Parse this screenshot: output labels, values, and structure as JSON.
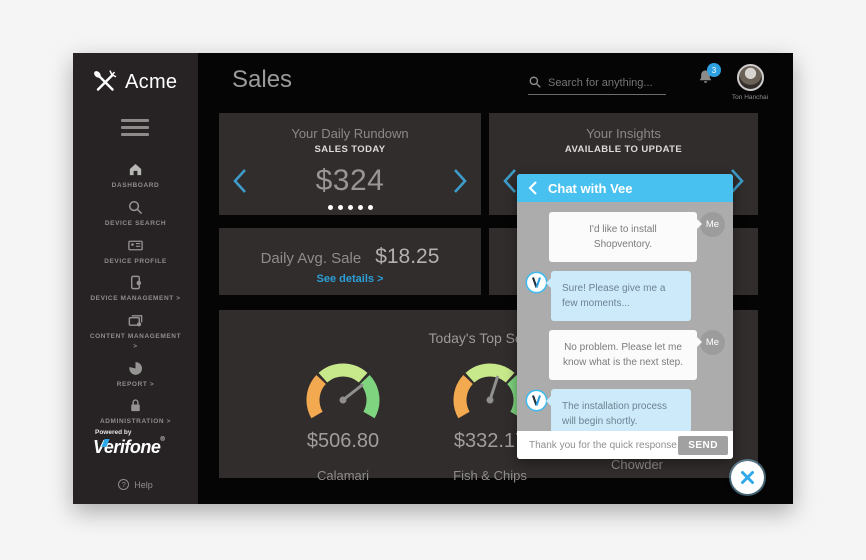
{
  "sidebar": {
    "logo": "Acme",
    "nav": [
      {
        "id": "dashboard",
        "label": "DASHBOARD"
      },
      {
        "id": "device-search",
        "label": "DEVICE SEARCH"
      },
      {
        "id": "device-profile",
        "label": "DEVICE PROFILE"
      },
      {
        "id": "device-management",
        "label": "DEVICE MANAGEMENT >"
      },
      {
        "id": "content-management",
        "label": "CONTENT MANAGEMENT >"
      },
      {
        "id": "report",
        "label": "REPORT >"
      },
      {
        "id": "administration",
        "label": "ADMINISTRATION >"
      }
    ],
    "powered_by": "Powered by",
    "brand": "Verifone",
    "brand_mark": "®",
    "help_glyph": "?",
    "help": "Help"
  },
  "header": {
    "title": "Sales",
    "search_placeholder": "Search for anything...",
    "notification_count": "3",
    "user_name": "Ton Hanchai"
  },
  "cards": {
    "rundown": {
      "title": "Your Daily Rundown",
      "subtitle": "SALES TODAY",
      "value": "$324"
    },
    "insights": {
      "title": "Your Insights",
      "subtitle": "AVAILABLE TO UPDATE"
    },
    "avg": {
      "label": "Daily Avg. Sale",
      "value": "$18.25",
      "link": "See details >"
    },
    "top": {
      "title": "Today's Top Sellers",
      "items": [
        {
          "value": "$506.80",
          "label": "Calamari",
          "needle_deg": 38
        },
        {
          "value": "$332.17",
          "label": "Fish & Chips",
          "needle_deg": 72
        },
        {
          "value": "",
          "label": "Clam Chowder",
          "needle_deg": 60
        }
      ]
    }
  },
  "chat": {
    "title": "Chat with Vee",
    "me_label": "Me",
    "messages": [
      {
        "from": "me",
        "text": "I'd like to install Shopventory."
      },
      {
        "from": "vee",
        "text": "Sure! Please give me a few moments..."
      },
      {
        "from": "me",
        "text": "No problem. Please let me know what is the next step."
      },
      {
        "from": "vee",
        "text": "The installation process will begin shortly."
      },
      {
        "from": "vee",
        "text": "· · ·"
      }
    ],
    "input_value": "Thank you for the quick response",
    "send_label": "SEND"
  },
  "colors": {
    "accent_blue": "#3d9cc9",
    "chat_header_blue": "#48c1f0",
    "badge_blue": "#2e9fe0",
    "link_blue": "#2b9fd6",
    "gauge_orange": "#f2a94f",
    "gauge_light_green": "#c7e98b",
    "gauge_green": "#7fd47f",
    "card_bg": "#322d2d",
    "sidebar_bg": "#272324"
  }
}
